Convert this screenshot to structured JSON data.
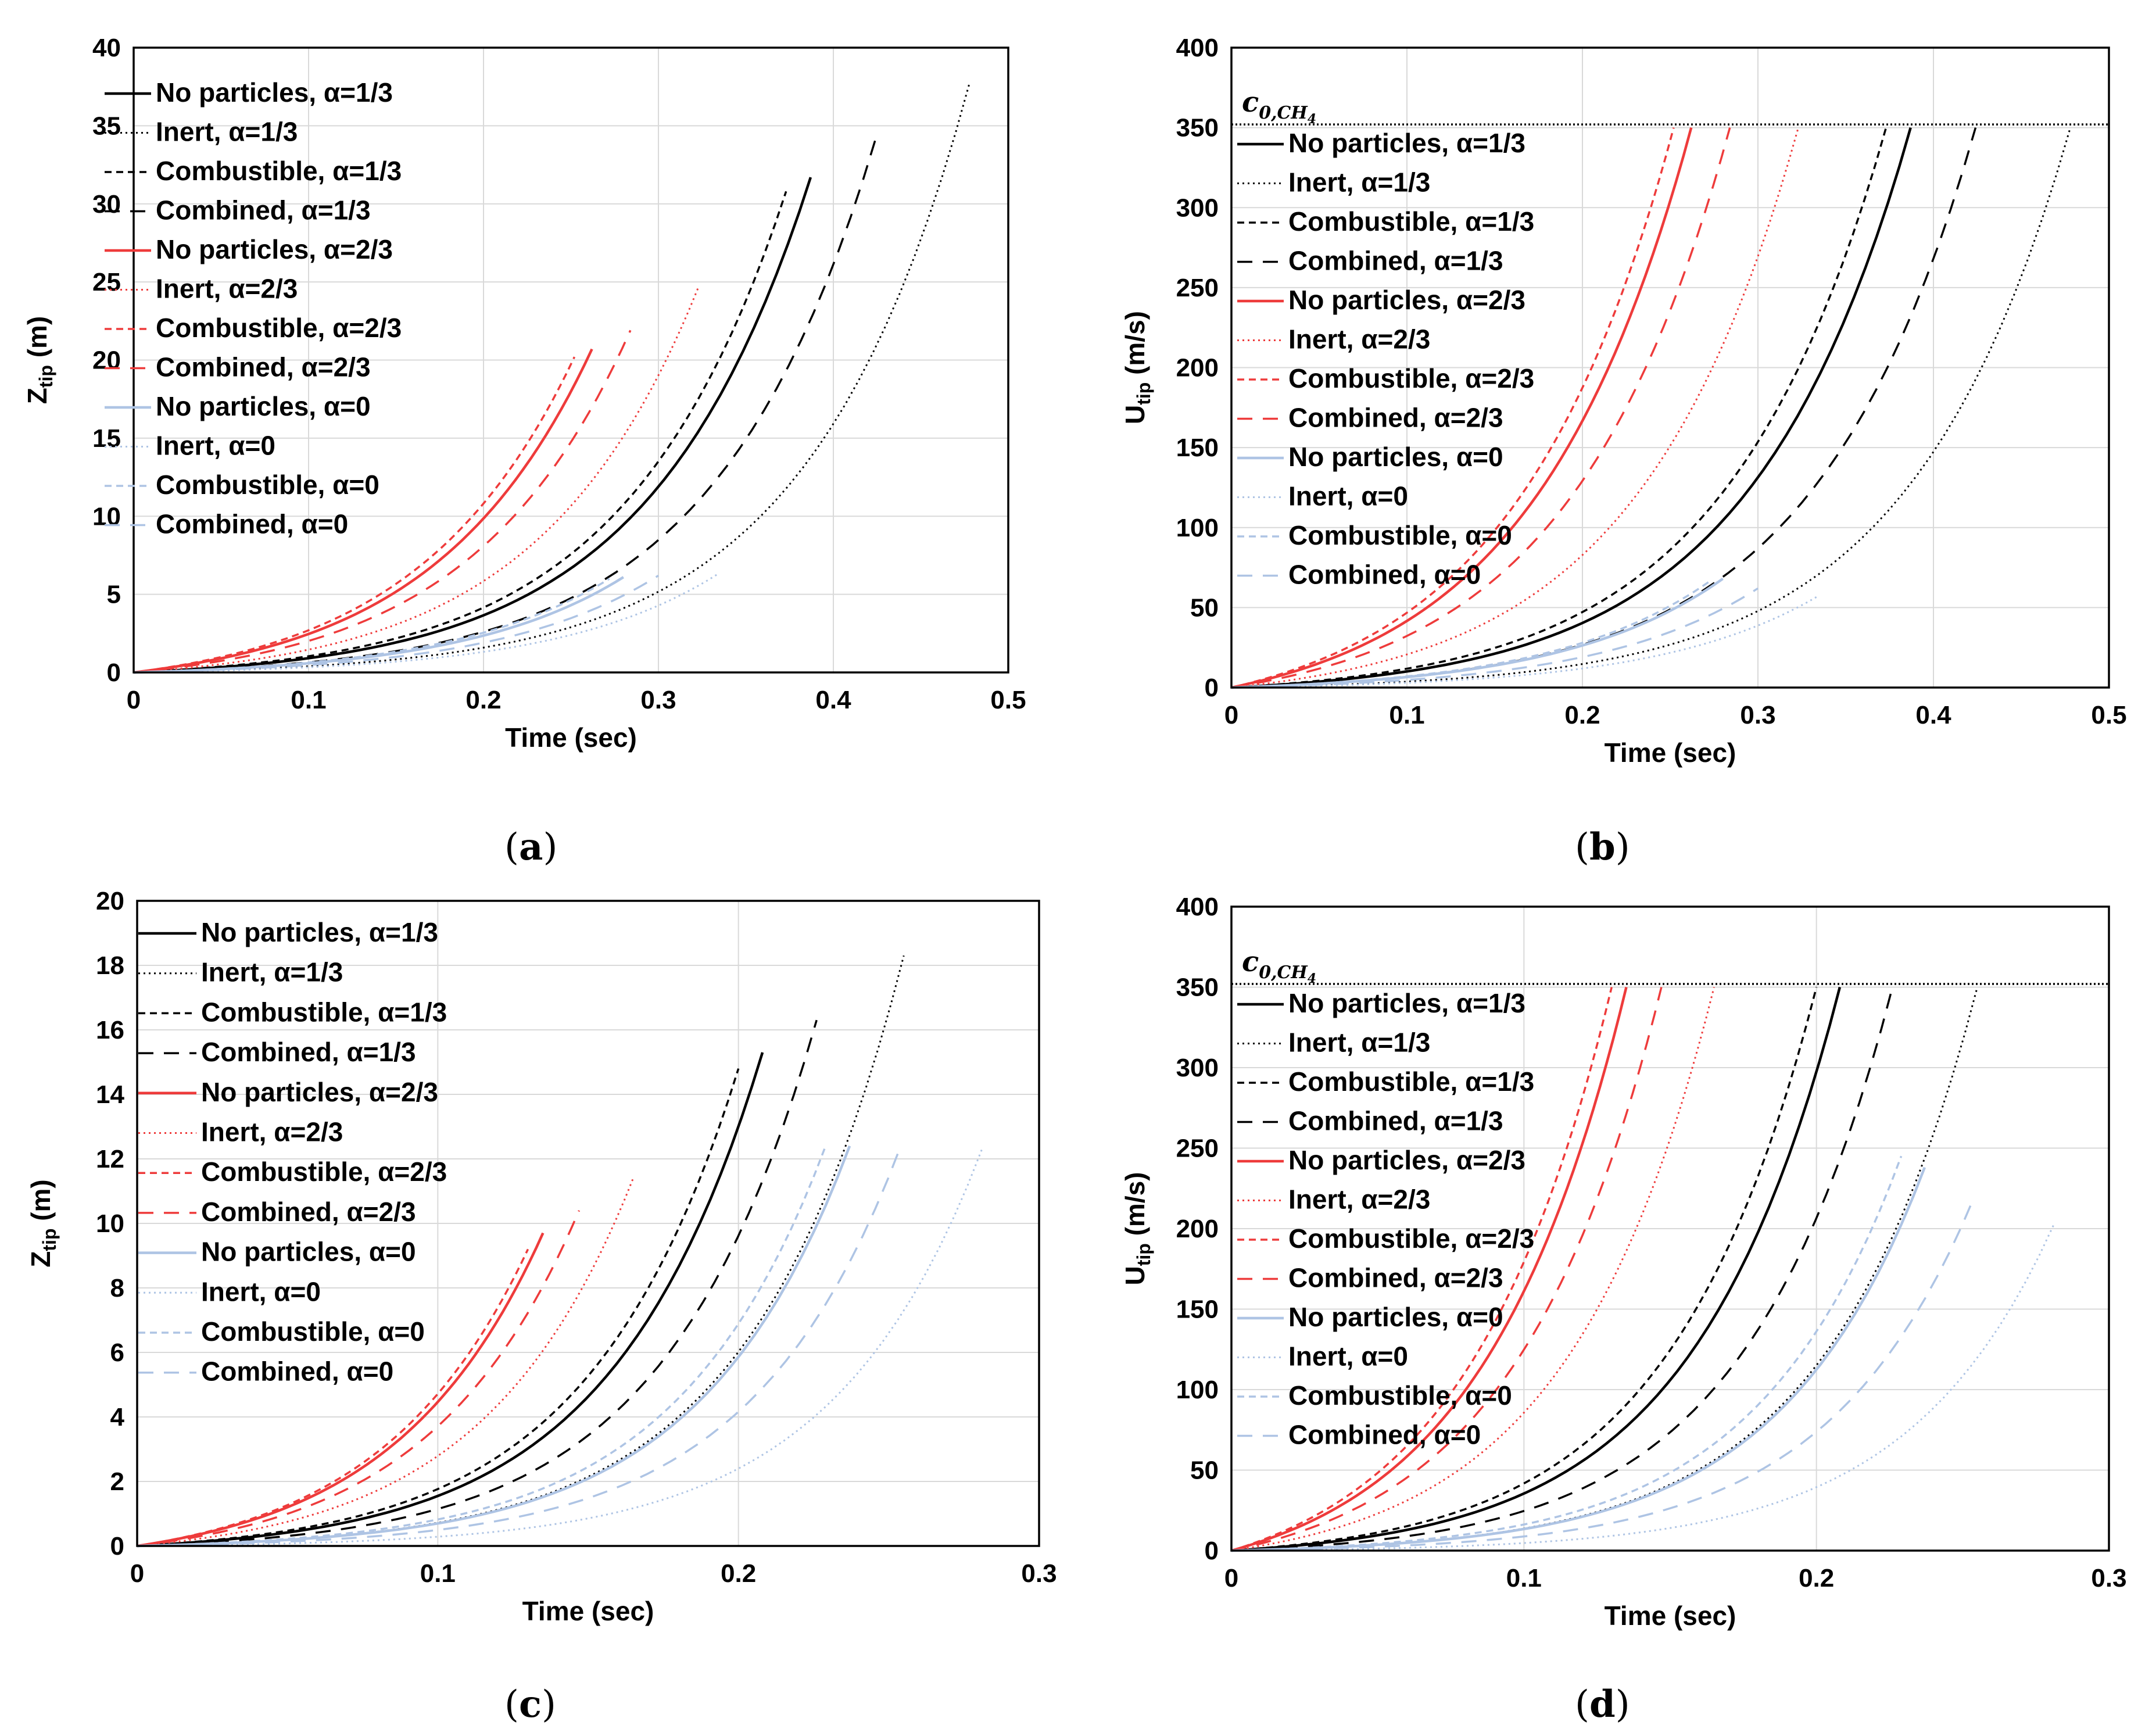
{
  "captions": {
    "a": "a",
    "b": "b",
    "c": "c",
    "d": "d"
  },
  "styles": {
    "No particles": {
      "dash": "",
      "width": 4.5
    },
    "Inert": {
      "dash": "3 6",
      "width": 3
    },
    "Combustible": {
      "dash": "12 8",
      "width": 3.5
    },
    "Combined": {
      "dash": "26 18",
      "width": 3.5
    }
  },
  "alpha_colors": {
    "α=1/3": "#000000",
    "α=2/3": "#ee3b3b",
    "α=0": "#aec4e4"
  },
  "chart_data": [
    {
      "id": "a",
      "type": "line",
      "xlabel": "Time (sec)",
      "ylabel": "Z",
      "ylabel_sub": "tip",
      "ylabel_unit": " (m)",
      "xlim": [
        0,
        0.5
      ],
      "ylim": [
        0,
        40
      ],
      "xticks": [
        0,
        0.1,
        0.2,
        0.3,
        0.4,
        0.5
      ],
      "xtick_labels": [
        "0",
        "0.1",
        "0.2",
        "0.3",
        "0.4",
        "0.5"
      ],
      "yticks": [
        0,
        5,
        10,
        15,
        20,
        25,
        30,
        35,
        40
      ],
      "ytick_labels": [
        "0",
        "5",
        "10",
        "15",
        "20",
        "25",
        "30",
        "35",
        "40"
      ],
      "reference_line": null,
      "series": [
        {
          "name": "No particles, α=1/3",
          "style": "No particles",
          "alpha": "α=1/3",
          "t_end": 0.387,
          "y_end": 31.7
        },
        {
          "name": "Inert, α=1/3",
          "style": "Inert",
          "alpha": "α=1/3",
          "t_end": 0.478,
          "y_end": 37.8
        },
        {
          "name": "Combustible, α=1/3",
          "style": "Combustible",
          "alpha": "α=1/3",
          "t_end": 0.373,
          "y_end": 30.8
        },
        {
          "name": "Combined, α=1/3",
          "style": "Combined",
          "alpha": "α=1/3",
          "t_end": 0.424,
          "y_end": 34.1
        },
        {
          "name": "No particles, α=2/3",
          "style": "No particles",
          "alpha": "α=2/3",
          "t_end": 0.262,
          "y_end": 20.7
        },
        {
          "name": "Inert, α=2/3",
          "style": "Inert",
          "alpha": "α=2/3",
          "t_end": 0.323,
          "y_end": 24.7
        },
        {
          "name": "Combustible, α=2/3",
          "style": "Combustible",
          "alpha": "α=2/3",
          "t_end": 0.252,
          "y_end": 20.2
        },
        {
          "name": "Combined, α=2/3",
          "style": "Combined",
          "alpha": "α=2/3",
          "t_end": 0.284,
          "y_end": 21.9
        },
        {
          "name": "No particles, α=0",
          "style": "No particles",
          "alpha": "α=0",
          "t_end": 0.28,
          "y_end": 6.1
        },
        {
          "name": "Inert, α=0",
          "style": "Inert",
          "alpha": "α=0",
          "t_end": 0.334,
          "y_end": 6.3
        },
        {
          "name": "Combustible, α=0",
          "style": "Combustible",
          "alpha": "α=0",
          "t_end": 0.272,
          "y_end": 6.0
        },
        {
          "name": "Combined, α=0",
          "style": "Combined",
          "alpha": "α=0",
          "t_end": 0.3,
          "y_end": 6.2
        }
      ]
    },
    {
      "id": "b",
      "type": "line",
      "xlabel": "Time (sec)",
      "ylabel": "U",
      "ylabel_sub": "tip",
      "ylabel_unit": " (m/s)",
      "xlim": [
        0,
        0.5
      ],
      "ylim": [
        0,
        400
      ],
      "xticks": [
        0,
        0.1,
        0.2,
        0.3,
        0.4,
        0.5
      ],
      "xtick_labels": [
        "0",
        "0.1",
        "0.2",
        "0.3",
        "0.4",
        "0.5"
      ],
      "yticks": [
        0,
        50,
        100,
        150,
        200,
        250,
        300,
        350,
        400
      ],
      "ytick_labels": [
        "0",
        "50",
        "100",
        "150",
        "200",
        "250",
        "300",
        "350",
        "400"
      ],
      "reference_line": {
        "y": 352,
        "label": "c",
        "label_sub": "0,CH",
        "label_sub2": "4"
      },
      "series": [
        {
          "name": "No particles, α=1/3",
          "style": "No particles",
          "alpha": "α=1/3",
          "t_end": 0.387,
          "y_end": 350
        },
        {
          "name": "Inert, α=1/3",
          "style": "Inert",
          "alpha": "α=1/3",
          "t_end": 0.478,
          "y_end": 350
        },
        {
          "name": "Combustible, α=1/3",
          "style": "Combustible",
          "alpha": "α=1/3",
          "t_end": 0.373,
          "y_end": 350
        },
        {
          "name": "Combined, α=1/3",
          "style": "Combined",
          "alpha": "α=1/3",
          "t_end": 0.424,
          "y_end": 350
        },
        {
          "name": "No particles, α=2/3",
          "style": "No particles",
          "alpha": "α=2/3",
          "t_end": 0.262,
          "y_end": 350
        },
        {
          "name": "Inert, α=2/3",
          "style": "Inert",
          "alpha": "α=2/3",
          "t_end": 0.323,
          "y_end": 350
        },
        {
          "name": "Combustible, α=2/3",
          "style": "Combustible",
          "alpha": "α=2/3",
          "t_end": 0.252,
          "y_end": 350
        },
        {
          "name": "Combined, α=2/3",
          "style": "Combined",
          "alpha": "α=2/3",
          "t_end": 0.284,
          "y_end": 350
        },
        {
          "name": "No particles, α=0",
          "style": "No particles",
          "alpha": "α=0",
          "t_end": 0.28,
          "y_end": 68
        },
        {
          "name": "Inert, α=0",
          "style": "Inert",
          "alpha": "α=0",
          "t_end": 0.334,
          "y_end": 57
        },
        {
          "name": "Combustible, α=0",
          "style": "Combustible",
          "alpha": "α=0",
          "t_end": 0.272,
          "y_end": 66
        },
        {
          "name": "Combined, α=0",
          "style": "Combined",
          "alpha": "α=0",
          "t_end": 0.3,
          "y_end": 62
        }
      ]
    },
    {
      "id": "c",
      "type": "line",
      "xlabel": "Time (sec)",
      "ylabel": "Z",
      "ylabel_sub": "tip",
      "ylabel_unit": " (m)",
      "xlim": [
        0,
        0.3
      ],
      "ylim": [
        0,
        20
      ],
      "xticks": [
        0,
        0.1,
        0.2,
        0.3
      ],
      "xtick_labels": [
        "0",
        "0.1",
        "0.2",
        "0.3"
      ],
      "yticks": [
        0,
        2,
        4,
        6,
        8,
        10,
        12,
        14,
        16,
        18,
        20
      ],
      "ytick_labels": [
        "0",
        "2",
        "4",
        "6",
        "8",
        "10",
        "12",
        "14",
        "16",
        "18",
        "20"
      ],
      "reference_line": null,
      "series": [
        {
          "name": "No particles, α=1/3",
          "style": "No particles",
          "alpha": "α=1/3",
          "t_end": 0.208,
          "y_end": 15.3
        },
        {
          "name": "Inert, α=1/3",
          "style": "Inert",
          "alpha": "α=1/3",
          "t_end": 0.255,
          "y_end": 18.3
        },
        {
          "name": "Combustible, α=1/3",
          "style": "Combustible",
          "alpha": "α=1/3",
          "t_end": 0.2,
          "y_end": 14.8
        },
        {
          "name": "Combined, α=1/3",
          "style": "Combined",
          "alpha": "α=1/3",
          "t_end": 0.226,
          "y_end": 16.3
        },
        {
          "name": "No particles, α=2/3",
          "style": "No particles",
          "alpha": "α=2/3",
          "t_end": 0.135,
          "y_end": 9.7
        },
        {
          "name": "Inert, α=2/3",
          "style": "Inert",
          "alpha": "α=2/3",
          "t_end": 0.165,
          "y_end": 11.4
        },
        {
          "name": "Combustible, α=2/3",
          "style": "Combustible",
          "alpha": "α=2/3",
          "t_end": 0.13,
          "y_end": 9.2
        },
        {
          "name": "Combined, α=2/3",
          "style": "Combined",
          "alpha": "α=2/3",
          "t_end": 0.147,
          "y_end": 10.4
        },
        {
          "name": "No particles, α=0",
          "style": "No particles",
          "alpha": "α=0",
          "t_end": 0.237,
          "y_end": 12.4
        },
        {
          "name": "Inert, α=0",
          "style": "Inert",
          "alpha": "α=0",
          "t_end": 0.281,
          "y_end": 12.3
        },
        {
          "name": "Combustible, α=0",
          "style": "Combustible",
          "alpha": "α=0",
          "t_end": 0.229,
          "y_end": 12.4
        },
        {
          "name": "Combined, α=0",
          "style": "Combined",
          "alpha": "α=0",
          "t_end": 0.254,
          "y_end": 12.4
        }
      ]
    },
    {
      "id": "d",
      "type": "line",
      "xlabel": "Time (sec)",
      "ylabel": "U",
      "ylabel_sub": "tip",
      "ylabel_unit": " (m/s)",
      "xlim": [
        0,
        0.3
      ],
      "ylim": [
        0,
        400
      ],
      "xticks": [
        0,
        0.1,
        0.2,
        0.3
      ],
      "xtick_labels": [
        "0",
        "0.1",
        "0.2",
        "0.3"
      ],
      "yticks": [
        0,
        50,
        100,
        150,
        200,
        250,
        300,
        350,
        400
      ],
      "ytick_labels": [
        "0",
        "50",
        "100",
        "150",
        "200",
        "250",
        "300",
        "350",
        "400"
      ],
      "reference_line": {
        "y": 352,
        "label": "c",
        "label_sub": "0,CH",
        "label_sub2": "4"
      },
      "series": [
        {
          "name": "No particles, α=1/3",
          "style": "No particles",
          "alpha": "α=1/3",
          "t_end": 0.208,
          "y_end": 350
        },
        {
          "name": "Inert, α=1/3",
          "style": "Inert",
          "alpha": "α=1/3",
          "t_end": 0.255,
          "y_end": 350
        },
        {
          "name": "Combustible, α=1/3",
          "style": "Combustible",
          "alpha": "α=1/3",
          "t_end": 0.2,
          "y_end": 350
        },
        {
          "name": "Combined, α=1/3",
          "style": "Combined",
          "alpha": "α=1/3",
          "t_end": 0.226,
          "y_end": 350
        },
        {
          "name": "No particles, α=2/3",
          "style": "No particles",
          "alpha": "α=2/3",
          "t_end": 0.135,
          "y_end": 350
        },
        {
          "name": "Inert, α=2/3",
          "style": "Inert",
          "alpha": "α=2/3",
          "t_end": 0.165,
          "y_end": 350
        },
        {
          "name": "Combustible, α=2/3",
          "style": "Combustible",
          "alpha": "α=2/3",
          "t_end": 0.13,
          "y_end": 350
        },
        {
          "name": "Combined, α=2/3",
          "style": "Combined",
          "alpha": "α=2/3",
          "t_end": 0.147,
          "y_end": 350
        },
        {
          "name": "No particles, α=0",
          "style": "No particles",
          "alpha": "α=0",
          "t_end": 0.237,
          "y_end": 238
        },
        {
          "name": "Inert, α=0",
          "style": "Inert",
          "alpha": "α=0",
          "t_end": 0.281,
          "y_end": 202
        },
        {
          "name": "Combustible, α=0",
          "style": "Combustible",
          "alpha": "α=0",
          "t_end": 0.229,
          "y_end": 245
        },
        {
          "name": "Combined, α=0",
          "style": "Combined",
          "alpha": "α=0",
          "t_end": 0.254,
          "y_end": 220
        }
      ]
    }
  ]
}
